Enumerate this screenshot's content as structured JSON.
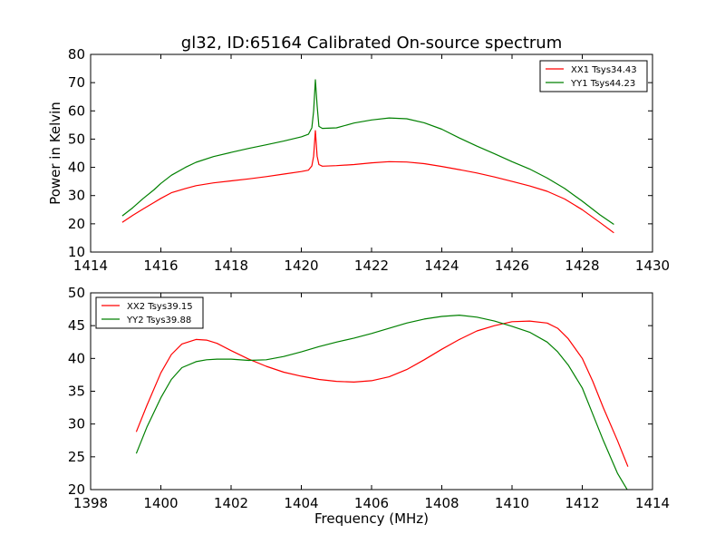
{
  "figure_title": "gl32, ID:65164 Calibrated On-source spectrum",
  "chart_data": [
    {
      "type": "line",
      "title": "gl32, ID:65164 Calibrated On-source spectrum",
      "xlabel": "",
      "ylabel": "Power in Kelvin",
      "xlim": [
        1414,
        1430
      ],
      "ylim": [
        10,
        80
      ],
      "x_ticks": [
        "1414",
        "1416",
        "1418",
        "1420",
        "1422",
        "1424",
        "1426",
        "1428",
        "1430"
      ],
      "y_ticks": [
        "10",
        "20",
        "30",
        "40",
        "50",
        "60",
        "70",
        "80"
      ],
      "grid": false,
      "legend_position": "top-right",
      "series": [
        {
          "name": "XX1 Tsys34.43",
          "color": "#ff0000",
          "x": [
            1414.9,
            1415.2,
            1415.5,
            1415.8,
            1416.0,
            1416.3,
            1416.7,
            1417.0,
            1417.5,
            1418.0,
            1418.5,
            1419.0,
            1419.5,
            1420.0,
            1420.2,
            1420.3,
            1420.35,
            1420.4,
            1420.45,
            1420.5,
            1420.6,
            1421.0,
            1421.5,
            1422.0,
            1422.5,
            1423.0,
            1423.5,
            1424.0,
            1424.5,
            1425.0,
            1425.5,
            1426.0,
            1426.5,
            1427.0,
            1427.5,
            1428.0,
            1428.5,
            1428.9
          ],
          "y": [
            20.5,
            23.0,
            25.3,
            27.5,
            29.0,
            31.0,
            32.5,
            33.5,
            34.5,
            35.2,
            35.9,
            36.7,
            37.6,
            38.5,
            39.0,
            40.5,
            44.0,
            53.0,
            44.0,
            41.0,
            40.4,
            40.6,
            41.0,
            41.6,
            42.0,
            41.9,
            41.3,
            40.3,
            39.2,
            38.0,
            36.6,
            35.0,
            33.4,
            31.5,
            28.8,
            25.0,
            20.5,
            16.8
          ]
        },
        {
          "name": "YY1 Tsys44.23",
          "color": "#008000",
          "x": [
            1414.9,
            1415.2,
            1415.5,
            1415.8,
            1416.0,
            1416.3,
            1416.7,
            1417.0,
            1417.5,
            1418.0,
            1418.5,
            1419.0,
            1419.5,
            1420.0,
            1420.2,
            1420.3,
            1420.35,
            1420.4,
            1420.45,
            1420.5,
            1420.6,
            1421.0,
            1421.5,
            1422.0,
            1422.5,
            1423.0,
            1423.5,
            1424.0,
            1424.5,
            1425.0,
            1425.5,
            1426.0,
            1426.5,
            1427.0,
            1427.5,
            1428.0,
            1428.5,
            1428.9
          ],
          "y": [
            22.8,
            25.7,
            29.0,
            32.0,
            34.3,
            37.2,
            40.0,
            41.8,
            43.8,
            45.3,
            46.7,
            48.0,
            49.3,
            50.8,
            51.7,
            54.0,
            60.0,
            71.0,
            62.0,
            54.5,
            53.8,
            54.0,
            55.7,
            56.8,
            57.5,
            57.2,
            55.8,
            53.5,
            50.4,
            47.5,
            44.8,
            42.0,
            39.4,
            36.2,
            32.5,
            28.0,
            23.2,
            19.8
          ]
        }
      ]
    },
    {
      "type": "line",
      "title": "",
      "xlabel": "Frequency (MHz)",
      "ylabel": "",
      "xlim": [
        1398,
        1414
      ],
      "ylim": [
        20,
        50
      ],
      "x_ticks": [
        "1398",
        "1400",
        "1402",
        "1404",
        "1406",
        "1408",
        "1410",
        "1412",
        "1414"
      ],
      "y_ticks": [
        "20",
        "25",
        "30",
        "35",
        "40",
        "45",
        "50"
      ],
      "grid": false,
      "legend_position": "top-left",
      "series": [
        {
          "name": "XX2 Tsys39.15",
          "color": "#ff0000",
          "x": [
            1399.3,
            1399.6,
            1400.0,
            1400.3,
            1400.6,
            1401.0,
            1401.3,
            1401.6,
            1402.0,
            1402.5,
            1403.0,
            1403.5,
            1404.0,
            1404.5,
            1405.0,
            1405.5,
            1406.0,
            1406.5,
            1407.0,
            1407.5,
            1408.0,
            1408.5,
            1409.0,
            1409.5,
            1410.0,
            1410.5,
            1411.0,
            1411.3,
            1411.6,
            1412.0,
            1412.3,
            1412.6,
            1413.0,
            1413.3
          ],
          "y": [
            28.8,
            32.8,
            37.8,
            40.6,
            42.2,
            42.9,
            42.8,
            42.3,
            41.2,
            39.9,
            38.8,
            37.9,
            37.3,
            36.8,
            36.5,
            36.4,
            36.6,
            37.2,
            38.3,
            39.8,
            41.4,
            42.9,
            44.2,
            45.0,
            45.6,
            45.7,
            45.4,
            44.6,
            43.0,
            40.0,
            36.5,
            32.5,
            27.5,
            23.5
          ]
        },
        {
          "name": "YY2 Tsys39.88",
          "color": "#008000",
          "x": [
            1399.3,
            1399.6,
            1400.0,
            1400.3,
            1400.6,
            1401.0,
            1401.3,
            1401.6,
            1402.0,
            1402.5,
            1403.0,
            1403.5,
            1404.0,
            1404.5,
            1405.0,
            1405.5,
            1406.0,
            1406.5,
            1407.0,
            1407.5,
            1408.0,
            1408.5,
            1409.0,
            1409.5,
            1410.0,
            1410.5,
            1411.0,
            1411.3,
            1411.6,
            1412.0,
            1412.3,
            1412.6,
            1413.0,
            1413.3
          ],
          "y": [
            25.5,
            29.5,
            34.0,
            36.8,
            38.6,
            39.5,
            39.8,
            39.9,
            39.9,
            39.7,
            39.8,
            40.3,
            41.0,
            41.8,
            42.5,
            43.1,
            43.8,
            44.6,
            45.4,
            46.0,
            46.4,
            46.6,
            46.3,
            45.7,
            44.9,
            44.0,
            42.5,
            41.0,
            39.0,
            35.5,
            31.5,
            27.5,
            22.5,
            19.8
          ]
        }
      ]
    }
  ]
}
